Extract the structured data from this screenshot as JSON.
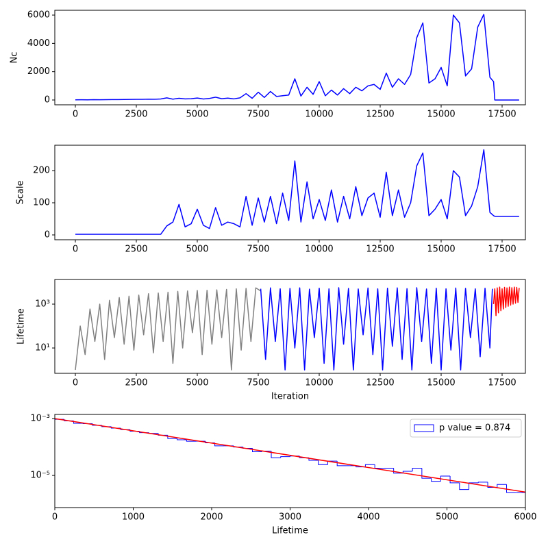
{
  "chart_data": [
    {
      "type": "line",
      "ylabel": "Nc",
      "xlim": [
        -843,
        18455
      ],
      "ylim": [
        -340,
        6340
      ],
      "xticks": [
        0,
        2500,
        5000,
        7500,
        10000,
        12500,
        15000,
        17500
      ],
      "yticks": [
        0,
        2000,
        4000,
        6000
      ],
      "x": [
        0,
        250,
        500,
        750,
        1000,
        1250,
        1500,
        1750,
        2000,
        2250,
        2500,
        2750,
        3000,
        3250,
        3500,
        3750,
        4000,
        4250,
        4500,
        4750,
        5000,
        5250,
        5500,
        5750,
        6000,
        6250,
        6500,
        6750,
        7000,
        7250,
        7500,
        7750,
        8000,
        8250,
        8500,
        8750,
        9000,
        9250,
        9500,
        9750,
        10000,
        10250,
        10500,
        10750,
        11000,
        11250,
        11500,
        11750,
        12000,
        12250,
        12500,
        12750,
        13000,
        13250,
        13500,
        13750,
        14000,
        14250,
        14500,
        14750,
        15000,
        15250,
        15500,
        15750,
        16000,
        16250,
        16500,
        16750,
        17000,
        17150,
        17200,
        18200
      ],
      "series": [
        {
          "color": "#0000ff",
          "values": [
            10,
            15,
            12,
            20,
            18,
            25,
            30,
            28,
            35,
            40,
            45,
            50,
            60,
            55,
            70,
            150,
            60,
            120,
            80,
            90,
            140,
            70,
            110,
            200,
            90,
            130,
            80,
            150,
            450,
            120,
            550,
            180,
            600,
            250,
            300,
            350,
            1500,
            280,
            900,
            400,
            1300,
            300,
            700,
            350,
            800,
            450,
            900,
            650,
            1000,
            1100,
            750,
            1900,
            900,
            1500,
            1100,
            1800,
            4400,
            5450,
            1200,
            1500,
            2300,
            1000,
            6000,
            5450,
            1700,
            2200,
            5150,
            6050,
            1600,
            1300,
            0,
            0
          ]
        }
      ]
    },
    {
      "type": "line",
      "ylabel": "Scale",
      "xlim": [
        -843,
        18455
      ],
      "ylim": [
        -15,
        279
      ],
      "xticks": [
        0,
        2500,
        5000,
        7500,
        10000,
        12500,
        15000,
        17500
      ],
      "yticks": [
        0,
        100,
        200
      ],
      "x": [
        0,
        250,
        500,
        750,
        1000,
        1250,
        1500,
        1750,
        2000,
        2250,
        2500,
        2750,
        3000,
        3250,
        3500,
        3750,
        4000,
        4250,
        4500,
        4750,
        5000,
        5250,
        5500,
        5750,
        6000,
        6250,
        6500,
        6750,
        7000,
        7250,
        7500,
        7750,
        8000,
        8250,
        8500,
        8750,
        9000,
        9250,
        9500,
        9750,
        10000,
        10250,
        10500,
        10750,
        11000,
        11250,
        11500,
        11750,
        12000,
        12250,
        12500,
        12750,
        13000,
        13250,
        13500,
        13750,
        14000,
        14250,
        14500,
        14750,
        15000,
        15250,
        15500,
        15750,
        16000,
        16250,
        16500,
        16750,
        17000,
        17150,
        17200,
        18200
      ],
      "series": [
        {
          "color": "#0000ff",
          "values": [
            2,
            2,
            2,
            2,
            2,
            2,
            2,
            2,
            2,
            2,
            2,
            2,
            2,
            2,
            2,
            28,
            40,
            95,
            25,
            35,
            80,
            30,
            20,
            85,
            30,
            40,
            35,
            25,
            120,
            30,
            115,
            40,
            120,
            35,
            130,
            45,
            230,
            40,
            165,
            50,
            110,
            45,
            140,
            40,
            120,
            50,
            150,
            60,
            115,
            130,
            55,
            195,
            60,
            140,
            55,
            100,
            215,
            255,
            60,
            80,
            110,
            50,
            200,
            180,
            60,
            90,
            150,
            265,
            70,
            60,
            58,
            58
          ]
        }
      ]
    },
    {
      "type": "line",
      "ylabel": "Lifetime",
      "xlabel": "Iteration",
      "yscale": "log",
      "xlim": [
        -843,
        18455
      ],
      "ylim": [
        0.7,
        13300
      ],
      "xticks": [
        0,
        2500,
        5000,
        7500,
        10000,
        12500,
        15000,
        17500
      ],
      "yticks": [
        {
          "value": 10,
          "label": "10¹"
        },
        {
          "value": 1000,
          "label": "10³"
        }
      ],
      "series": [
        {
          "color": "#808080",
          "x": [
            0,
            200,
            400,
            600,
            800,
            1000,
            1200,
            1400,
            1600,
            1800,
            2000,
            2200,
            2400,
            2600,
            2800,
            3000,
            3200,
            3400,
            3600,
            3800,
            4000,
            4200,
            4400,
            4600,
            4800,
            5000,
            5200,
            5400,
            5600,
            5800,
            6000,
            6200,
            6400,
            6600,
            6800,
            7000,
            7200,
            7400,
            7600
          ],
          "values": [
            1,
            100,
            5,
            600,
            20,
            1000,
            3,
            1500,
            30,
            2000,
            15,
            2300,
            8,
            2600,
            40,
            3000,
            6,
            3200,
            20,
            3500,
            2,
            3800,
            10,
            4000,
            50,
            4200,
            5,
            4300,
            15,
            4500,
            30,
            4700,
            1,
            5000,
            8,
            5200,
            20,
            5500,
            4000
          ]
        },
        {
          "color": "#0000ff",
          "x": [
            7600,
            7800,
            8000,
            8200,
            8400,
            8600,
            8800,
            9000,
            9200,
            9400,
            9600,
            9800,
            10000,
            10200,
            10400,
            10600,
            10800,
            11000,
            11200,
            11400,
            11600,
            11800,
            12000,
            12200,
            12400,
            12600,
            12800,
            13000,
            13200,
            13400,
            13600,
            13800,
            14000,
            14200,
            14400,
            14600,
            14800,
            15000,
            15200,
            15400,
            15600,
            15800,
            16000,
            16200,
            16400,
            16600,
            16800,
            17000,
            17100
          ],
          "values": [
            5000,
            3,
            5500,
            20,
            5000,
            1,
            5200,
            10,
            5500,
            1,
            4800,
            30,
            5300,
            2,
            5000,
            1,
            5600,
            15,
            5200,
            1,
            4900,
            40,
            5400,
            5,
            5000,
            1,
            5300,
            12,
            5500,
            3,
            5100,
            1,
            5600,
            20,
            4900,
            2,
            5300,
            1,
            5000,
            8,
            5400,
            1,
            5200,
            30,
            5000,
            4,
            5300,
            10,
            5000
          ]
        },
        {
          "color": "#ff0000",
          "x": [
            17150,
            17200,
            17250,
            17300,
            17350,
            17400,
            17450,
            17500,
            17550,
            17600,
            17650,
            17700,
            17750,
            17800,
            17850,
            17900,
            17950,
            18000,
            18050,
            18100,
            18150,
            18200
          ],
          "values": [
            1000,
            5000,
            300,
            5500,
            400,
            6000,
            500,
            5000,
            600,
            5800,
            700,
            5500,
            800,
            6000,
            900,
            5600,
            1000,
            6000,
            1100,
            5800,
            1200,
            5500
          ]
        }
      ]
    },
    {
      "type": "histogram",
      "xlabel": "Lifetime",
      "yscale": "log",
      "xlim": [
        0,
        6000
      ],
      "ylim": [
        7.4e-07,
        0.0014
      ],
      "xticks": [
        0,
        1000,
        2000,
        3000,
        4000,
        5000,
        6000
      ],
      "yticks": [
        {
          "value": 1e-05,
          "label": "10⁻⁵"
        },
        {
          "value": 0.001,
          "label": "10⁻³"
        }
      ],
      "legend": "upper right",
      "series": [
        {
          "name": "p value = 0.874",
          "color": "#0000ff",
          "bins": [
            0,
            120,
            240,
            360,
            480,
            600,
            720,
            840,
            960,
            1080,
            1200,
            1320,
            1440,
            1560,
            1680,
            1800,
            1920,
            2040,
            2160,
            2280,
            2400,
            2520,
            2640,
            2760,
            2880,
            3000,
            3120,
            3240,
            3360,
            3480,
            3600,
            3720,
            3840,
            3960,
            4080,
            4200,
            4320,
            4440,
            4560,
            4680,
            4800,
            4920,
            5040,
            5160,
            5280,
            5400,
            5520,
            5640,
            5760,
            5880,
            6000
          ],
          "values": [
            0.00094,
            0.000835,
            0.00068,
            0.00066,
            0.00058,
            0.00052,
            0.00046,
            0.00041,
            0.00036,
            0.00032,
            0.0003,
            0.00026,
            0.0002,
            0.00018,
            0.00016,
            0.00016,
            0.00014,
            0.00011,
            0.00011,
            0.0001,
            9e-05,
            6.8e-05,
            7.2e-05,
            4.2e-05,
            4.6e-05,
            4.8e-05,
            4.2e-05,
            3.4e-05,
            2.4e-05,
            3.2e-05,
            2.2e-05,
            2.2e-05,
            2e-05,
            2.4e-05,
            1.8e-05,
            1.8e-05,
            1.2e-05,
            1.4e-05,
            1.8e-05,
            8e-06,
            6.2e-06,
            9.5e-06,
            5.5e-06,
            3.2e-06,
            5.5e-06,
            5.8e-06,
            3.8e-06,
            4.8e-06,
            2.5e-06,
            2.5e-06
          ]
        }
      ],
      "fit": {
        "color": "#ff0000",
        "x": [
          0,
          6000
        ],
        "values": [
          0.001,
          2.6e-06
        ]
      }
    }
  ]
}
